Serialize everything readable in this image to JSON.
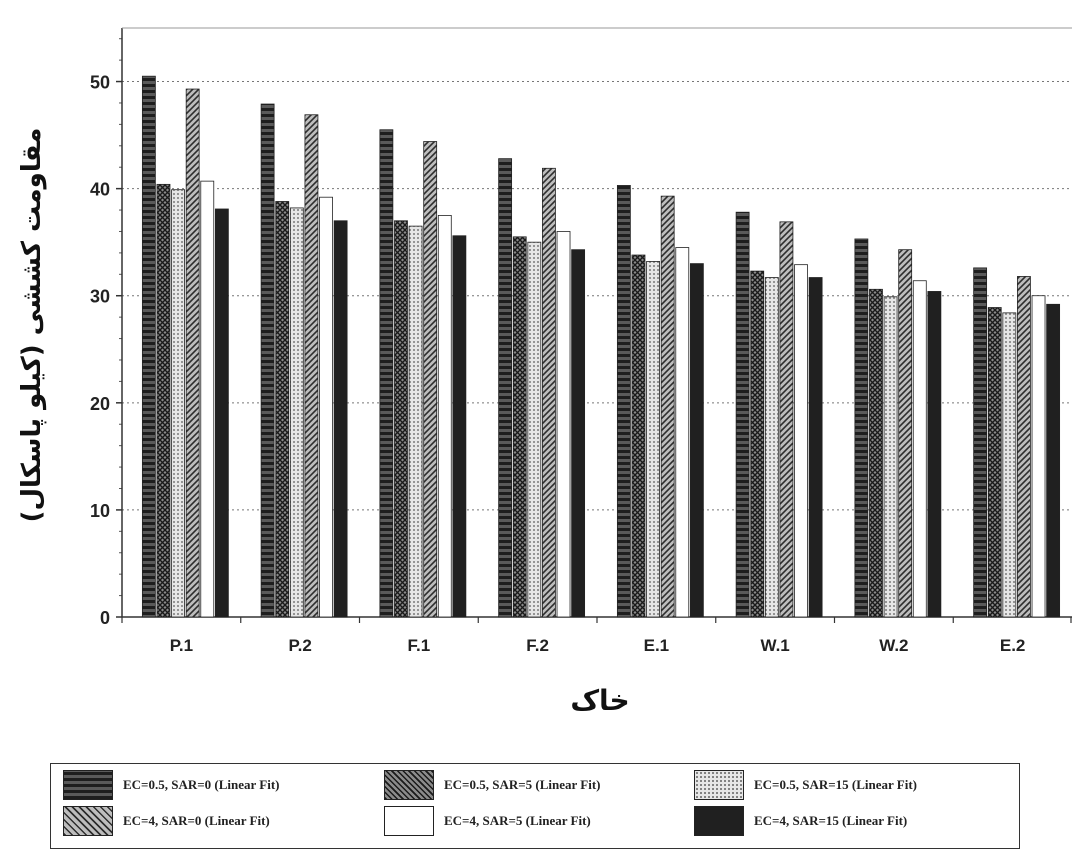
{
  "chart_data": {
    "type": "bar",
    "title": "",
    "xlabel": "خاک",
    "ylabel": "مقاومت کششی (کیلو پاسکال)",
    "ylim": [
      0,
      55
    ],
    "yticks": [
      0,
      10,
      20,
      30,
      40,
      50
    ],
    "grid": "horizontal dotted",
    "legend_position": "bottom",
    "categories": [
      "P.1",
      "P.2",
      "F.1",
      "F.2",
      "E.1",
      "W.1",
      "W.2",
      "E.2"
    ],
    "series": [
      {
        "name": "EC=0.5, SAR=0 (Linear Fit)",
        "pattern": "horizontal-stripes",
        "color": "#3a3a3a",
        "values": [
          50.5,
          47.9,
          45.5,
          42.8,
          40.3,
          37.8,
          35.3,
          32.6
        ]
      },
      {
        "name": "EC=0.5, SAR=5 (Linear Fit)",
        "pattern": "crosshatch",
        "color": "#4a4a4a",
        "values": [
          40.4,
          38.8,
          37.0,
          35.5,
          33.8,
          32.3,
          30.6,
          28.9
        ]
      },
      {
        "name": "EC=0.5, SAR=15 (Linear Fit)",
        "pattern": "dots",
        "color": "#bbbbbb",
        "values": [
          39.9,
          38.2,
          36.5,
          35.0,
          33.2,
          31.7,
          29.9,
          28.4
        ]
      },
      {
        "name": "EC=4, SAR=0 (Linear Fit)",
        "pattern": "diagonal",
        "color": "#6a6a6a",
        "values": [
          49.3,
          46.9,
          44.4,
          41.9,
          39.3,
          36.9,
          34.3,
          31.8
        ]
      },
      {
        "name": "EC=4, SAR=5 (Linear Fit)",
        "pattern": "white",
        "color": "#ffffff",
        "values": [
          40.7,
          39.2,
          37.5,
          36.0,
          34.5,
          32.9,
          31.4,
          30.0
        ]
      },
      {
        "name": "EC=4, SAR=15 (Linear Fit)",
        "pattern": "solid",
        "color": "#222222",
        "values": [
          38.1,
          37.0,
          35.6,
          34.3,
          33.0,
          31.7,
          30.4,
          29.2
        ]
      }
    ]
  }
}
